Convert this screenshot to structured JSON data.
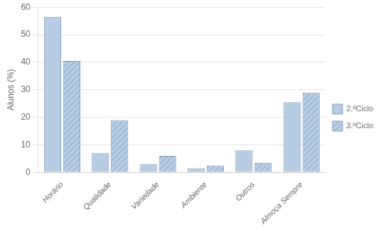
{
  "chart_data": {
    "type": "bar",
    "categories": [
      "Horário",
      "Qualidade",
      "Variedade",
      "Ambiente",
      "Outros",
      "Almoça Sempre"
    ],
    "series": [
      {
        "name": "2.ºCiclo",
        "color": "#b8cce4",
        "values": [
          56.5,
          7.0,
          3.0,
          1.5,
          8.0,
          25.5
        ]
      },
      {
        "name": "3.ºCiclo",
        "color": "#b8cce4",
        "values": [
          40.5,
          19.0,
          6.0,
          2.5,
          3.5,
          29.0
        ]
      }
    ],
    "ylabel": "Alunos (%)",
    "ylim": [
      0,
      60
    ],
    "yticks": [
      0,
      10,
      20,
      30,
      40,
      50,
      60
    ],
    "grid": true,
    "legend": "right"
  }
}
